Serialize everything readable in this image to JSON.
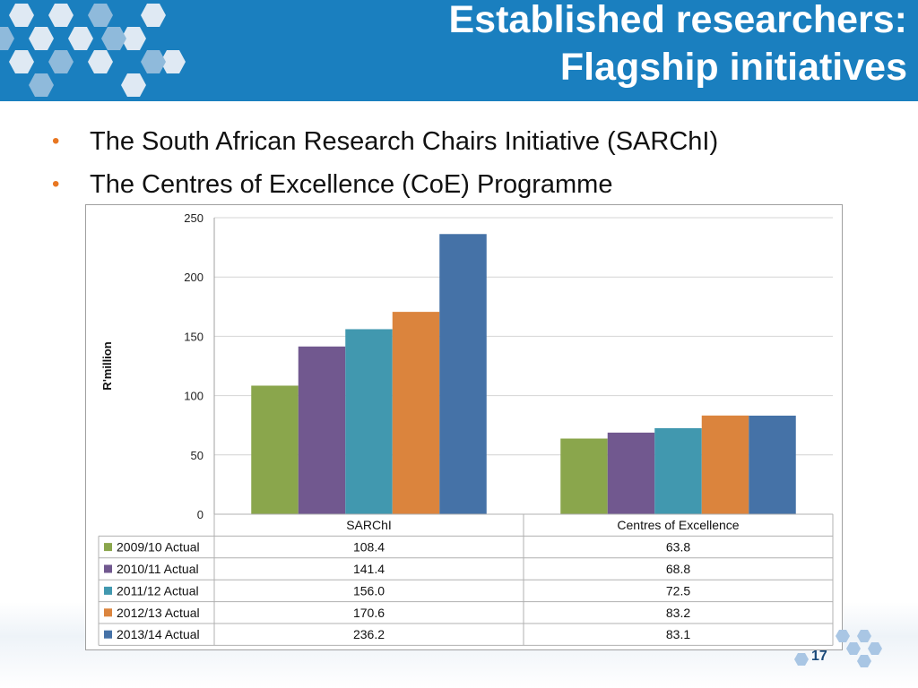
{
  "slide": {
    "title_line1": "Established researchers:",
    "title_line2": "Flagship initiatives",
    "bullets": [
      "The South African Research Chairs Initiative (SARChI)",
      "The Centres of Excellence (CoE) Programme"
    ],
    "page_number": "17"
  },
  "colors": {
    "header": "#1a7fbf",
    "bullet": "#e87722"
  },
  "chart_data": {
    "type": "bar",
    "categories": [
      "SARChI",
      "Centres of Excellence"
    ],
    "ylabel": "R'million",
    "ylim": [
      0,
      250
    ],
    "yticks": [
      0,
      50,
      100,
      150,
      200,
      250
    ],
    "grid": true,
    "legend": "data-table",
    "series": [
      {
        "name": "2009/10 Actual",
        "color": "#8aa64c",
        "values": [
          108.4,
          63.8
        ],
        "labels": [
          "108.4",
          "63.8"
        ]
      },
      {
        "name": "2010/11 Actual",
        "color": "#71588f",
        "values": [
          141.4,
          68.8
        ],
        "labels": [
          "141.4",
          "68.8"
        ]
      },
      {
        "name": "2011/12 Actual",
        "color": "#4198af",
        "values": [
          156.0,
          72.5
        ],
        "labels": [
          "156.0",
          "72.5"
        ]
      },
      {
        "name": "2012/13 Actual",
        "color": "#db843d",
        "values": [
          170.6,
          83.2
        ],
        "labels": [
          "170.6",
          "83.2"
        ]
      },
      {
        "name": "2013/14 Actual",
        "color": "#4572a7",
        "values": [
          236.2,
          83.1
        ],
        "labels": [
          "236.2",
          "83.1"
        ]
      }
    ]
  }
}
